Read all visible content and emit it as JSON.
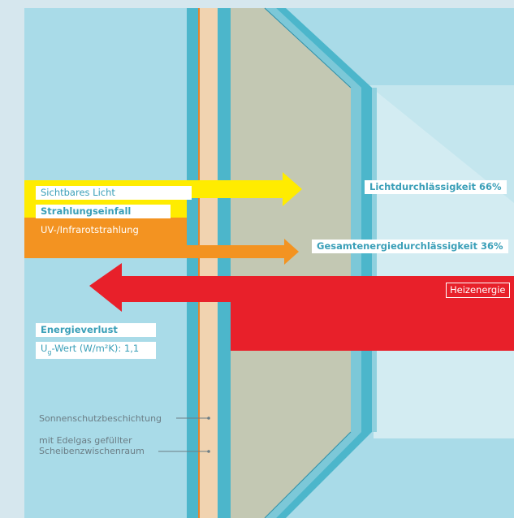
{
  "colors": {
    "frame_bg": "#d6e7ee",
    "sky": "#a9dbe8",
    "glass_inner": "#c3c8b3",
    "yellow": "#ffec00",
    "orange": "#f39321",
    "red": "#e8202a",
    "accent_text": "#3a9fb8"
  },
  "labels": {
    "visible_light": "Sichtbares Licht",
    "radiation_incidence": "Strahlungseinfall",
    "uv_infrared": "UV-/Infrarotstrahlung",
    "light_transmission": "Lichtdurchlässigkeit 66%",
    "total_energy_transmission": "Gesamtenergiedurchlässigkeit 36%",
    "heating_energy": "Heizenergie",
    "energy_loss": "Energieverlust",
    "ug_prefix": "U",
    "ug_sub": "g",
    "ug_value": "-Wert (W/m²K): 1,1",
    "sun_protection_coating": "Sonnenschutzbeschichtung",
    "gas_filled_line1": "mit Edelgas gefüllter",
    "gas_filled_line2": "Scheibenzwischenraum"
  }
}
